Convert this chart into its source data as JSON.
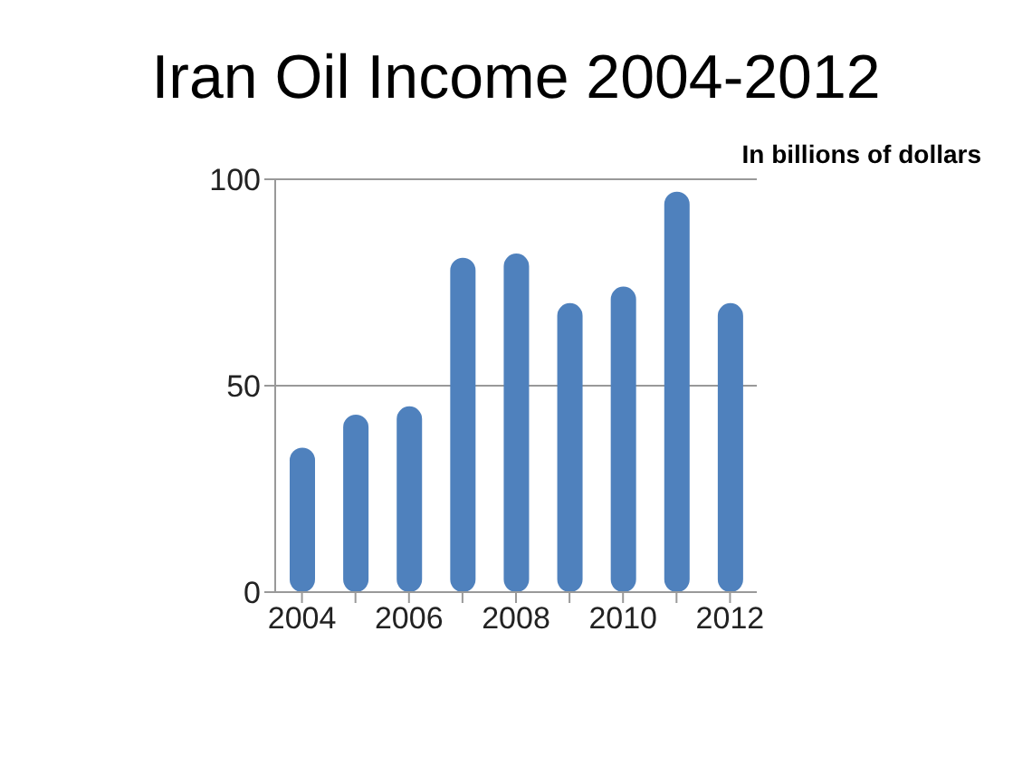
{
  "chart_data": {
    "type": "bar",
    "title": "Iran Oil Income 2004-2012",
    "subtitle": "In billions of dollars",
    "categories": [
      "2004",
      null,
      "2006",
      null,
      "2008",
      null,
      "2010",
      null,
      "2012"
    ],
    "values": [
      35,
      43,
      45,
      81,
      82,
      70,
      74,
      97,
      70
    ],
    "color": "#4f81bd",
    "ylim": [
      0,
      100
    ],
    "yticks": [
      0,
      50,
      100
    ],
    "grid": "y"
  }
}
